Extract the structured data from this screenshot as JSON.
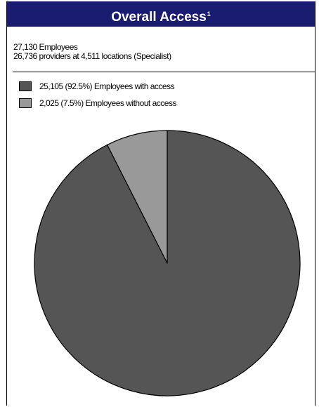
{
  "header": {
    "title": "Overall Access",
    "footnote": "1"
  },
  "stats": {
    "line1": "27,130 Employees",
    "line2": "26,736 providers at 4,511 locations (Specialist)"
  },
  "legend": [
    {
      "label": "25,105 (92.5%) Employees with access",
      "color": "#555555"
    },
    {
      "label": "2,025 (7.5%) Employees without access",
      "color": "#999999"
    }
  ],
  "chart_data": {
    "type": "pie",
    "slices": [
      {
        "label": "Employees with access",
        "value": 25105,
        "percent": 92.5,
        "color": "#555555"
      },
      {
        "label": "Employees without access",
        "value": 2025,
        "percent": 7.5,
        "color": "#999999"
      }
    ],
    "start_angle": "12 o'clock",
    "direction": "clockwise",
    "legend_position": "top-left"
  }
}
